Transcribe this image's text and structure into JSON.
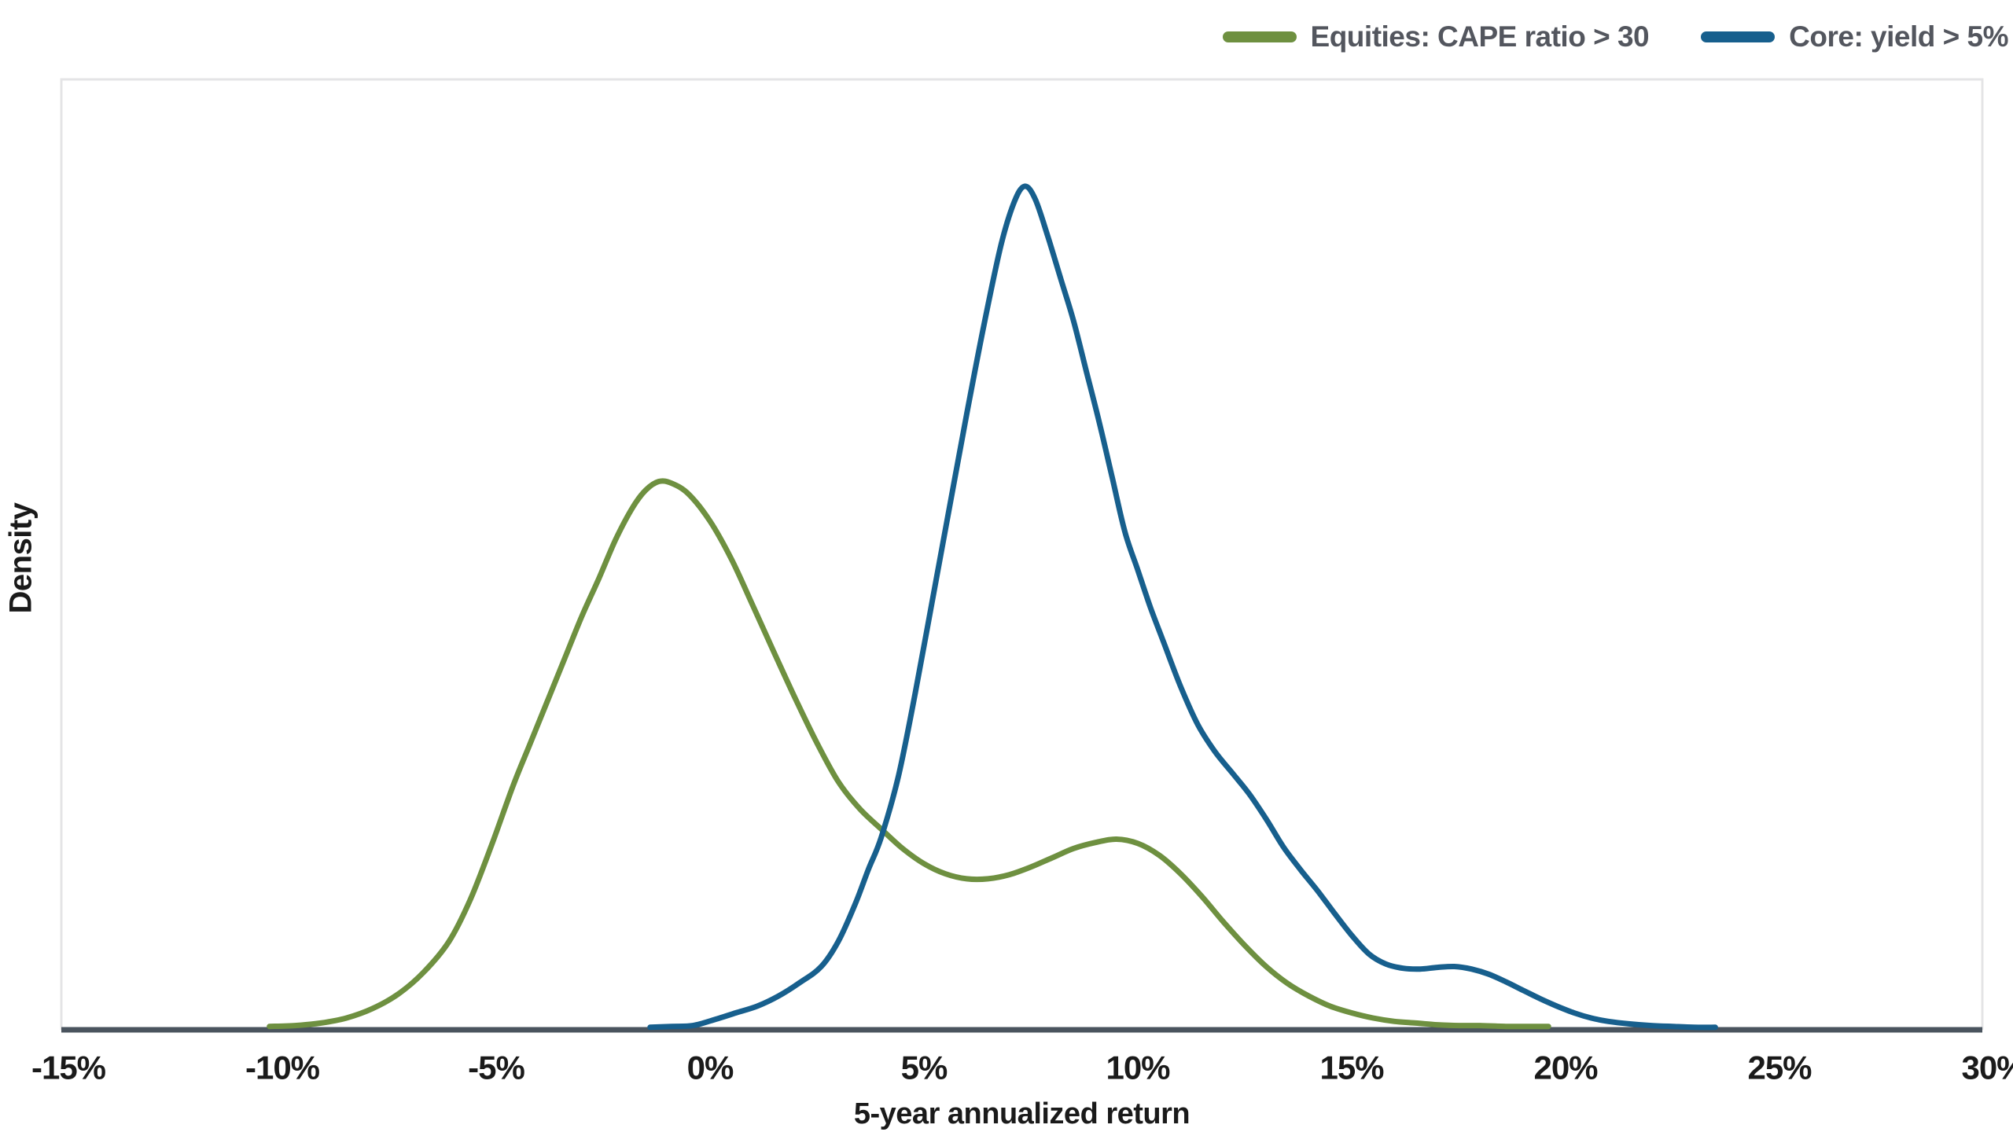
{
  "chart_data": {
    "type": "line",
    "title": "",
    "xlabel": "5-year annualized return",
    "ylabel": "Density",
    "x_ticks": [
      -15,
      -10,
      -5,
      0,
      5,
      10,
      15,
      20,
      25,
      30
    ],
    "x_tick_labels": [
      "-15%",
      "-10%",
      "-5%",
      "0%",
      "5%",
      "10%",
      "15%",
      "20%",
      "25%",
      "30%"
    ],
    "xlim": [
      -15.2,
      29.8
    ],
    "ylim": [
      0,
      1.126
    ],
    "y_units": "relative density (Core peak = 1.0)",
    "grid": false,
    "legend_position": "top-right",
    "series": [
      {
        "name": "Equities: CAPE ratio > 30",
        "color": "#6E9040",
        "peak": {
          "x": -1.2,
          "y": 0.65
        },
        "secondary_peak": {
          "x": 9.5,
          "y": 0.226
        },
        "points": [
          [
            -10.3,
            0.004
          ],
          [
            -9.7,
            0.005
          ],
          [
            -9.1,
            0.008
          ],
          [
            -8.5,
            0.014
          ],
          [
            -7.9,
            0.025
          ],
          [
            -7.3,
            0.042
          ],
          [
            -6.7,
            0.068
          ],
          [
            -6.1,
            0.105
          ],
          [
            -5.6,
            0.155
          ],
          [
            -5.1,
            0.22
          ],
          [
            -4.6,
            0.29
          ],
          [
            -4.2,
            0.34
          ],
          [
            -3.8,
            0.39
          ],
          [
            -3.4,
            0.44
          ],
          [
            -3.0,
            0.49
          ],
          [
            -2.6,
            0.535
          ],
          [
            -2.2,
            0.582
          ],
          [
            -1.8,
            0.62
          ],
          [
            -1.5,
            0.64
          ],
          [
            -1.2,
            0.65
          ],
          [
            -0.9,
            0.648
          ],
          [
            -0.5,
            0.635
          ],
          [
            0.0,
            0.603
          ],
          [
            0.5,
            0.558
          ],
          [
            1.0,
            0.503
          ],
          [
            1.5,
            0.447
          ],
          [
            2.0,
            0.392
          ],
          [
            2.5,
            0.34
          ],
          [
            3.0,
            0.294
          ],
          [
            3.5,
            0.262
          ],
          [
            4.0,
            0.238
          ],
          [
            4.5,
            0.215
          ],
          [
            5.0,
            0.197
          ],
          [
            5.5,
            0.185
          ],
          [
            6.0,
            0.179
          ],
          [
            6.5,
            0.179
          ],
          [
            7.0,
            0.184
          ],
          [
            7.5,
            0.193
          ],
          [
            8.0,
            0.204
          ],
          [
            8.5,
            0.215
          ],
          [
            9.0,
            0.222
          ],
          [
            9.5,
            0.226
          ],
          [
            10.0,
            0.221
          ],
          [
            10.5,
            0.207
          ],
          [
            11.0,
            0.185
          ],
          [
            11.5,
            0.158
          ],
          [
            12.0,
            0.128
          ],
          [
            12.5,
            0.1
          ],
          [
            13.0,
            0.075
          ],
          [
            13.5,
            0.055
          ],
          [
            14.0,
            0.04
          ],
          [
            14.5,
            0.028
          ],
          [
            15.0,
            0.02
          ],
          [
            15.5,
            0.014
          ],
          [
            16.0,
            0.01
          ],
          [
            16.5,
            0.008
          ],
          [
            17.0,
            0.006
          ],
          [
            17.5,
            0.005
          ],
          [
            18.0,
            0.005
          ],
          [
            18.6,
            0.004
          ],
          [
            19.2,
            0.004
          ],
          [
            19.6,
            0.004
          ]
        ]
      },
      {
        "name": "Core: yield > 5%",
        "color": "#175F8D",
        "peak": {
          "x": 7.35,
          "y": 1.0
        },
        "shoulder": {
          "x": 12.2,
          "y": 0.305
        },
        "tail_bump": {
          "x": 17.4,
          "y": 0.075
        },
        "points": [
          [
            -1.4,
            0.003
          ],
          [
            -0.9,
            0.004
          ],
          [
            -0.4,
            0.005
          ],
          [
            0.1,
            0.012
          ],
          [
            0.6,
            0.02
          ],
          [
            1.1,
            0.028
          ],
          [
            1.6,
            0.04
          ],
          [
            2.1,
            0.056
          ],
          [
            2.6,
            0.075
          ],
          [
            3.0,
            0.105
          ],
          [
            3.4,
            0.15
          ],
          [
            3.7,
            0.19
          ],
          [
            4.0,
            0.228
          ],
          [
            4.4,
            0.3
          ],
          [
            4.8,
            0.4
          ],
          [
            5.2,
            0.51
          ],
          [
            5.6,
            0.62
          ],
          [
            6.0,
            0.73
          ],
          [
            6.4,
            0.835
          ],
          [
            6.8,
            0.93
          ],
          [
            7.1,
            0.98
          ],
          [
            7.35,
            1.0
          ],
          [
            7.6,
            0.985
          ],
          [
            7.9,
            0.94
          ],
          [
            8.2,
            0.89
          ],
          [
            8.5,
            0.84
          ],
          [
            8.8,
            0.78
          ],
          [
            9.1,
            0.72
          ],
          [
            9.4,
            0.655
          ],
          [
            9.7,
            0.59
          ],
          [
            10.0,
            0.545
          ],
          [
            10.3,
            0.5
          ],
          [
            10.6,
            0.46
          ],
          [
            11.0,
            0.407
          ],
          [
            11.4,
            0.362
          ],
          [
            11.8,
            0.33
          ],
          [
            12.2,
            0.305
          ],
          [
            12.6,
            0.28
          ],
          [
            13.0,
            0.25
          ],
          [
            13.4,
            0.217
          ],
          [
            13.8,
            0.19
          ],
          [
            14.2,
            0.165
          ],
          [
            14.6,
            0.138
          ],
          [
            15.0,
            0.112
          ],
          [
            15.4,
            0.09
          ],
          [
            15.8,
            0.078
          ],
          [
            16.2,
            0.073
          ],
          [
            16.6,
            0.072
          ],
          [
            17.0,
            0.074
          ],
          [
            17.4,
            0.075
          ],
          [
            17.8,
            0.072
          ],
          [
            18.2,
            0.066
          ],
          [
            18.6,
            0.057
          ],
          [
            19.0,
            0.047
          ],
          [
            19.4,
            0.037
          ],
          [
            19.8,
            0.028
          ],
          [
            20.2,
            0.02
          ],
          [
            20.6,
            0.014
          ],
          [
            21.0,
            0.01
          ],
          [
            21.5,
            0.007
          ],
          [
            22.0,
            0.005
          ],
          [
            22.5,
            0.004
          ],
          [
            23.0,
            0.003
          ],
          [
            23.5,
            0.003
          ]
        ]
      }
    ]
  },
  "legend": {
    "items": [
      {
        "label": "Equities: CAPE ratio > 30",
        "color": "#6E9040"
      },
      {
        "label": "Core: yield > 5%",
        "color": "#175F8D"
      }
    ]
  },
  "axes": {
    "x_title": "5-year annualized return",
    "y_title": "Density"
  },
  "colors": {
    "background": "#FFFFFF",
    "plot_border": "#E4E4E6",
    "axis_line": "#4A545E",
    "tick_text": "#1A1A1A",
    "legend_text": "#53565E"
  }
}
